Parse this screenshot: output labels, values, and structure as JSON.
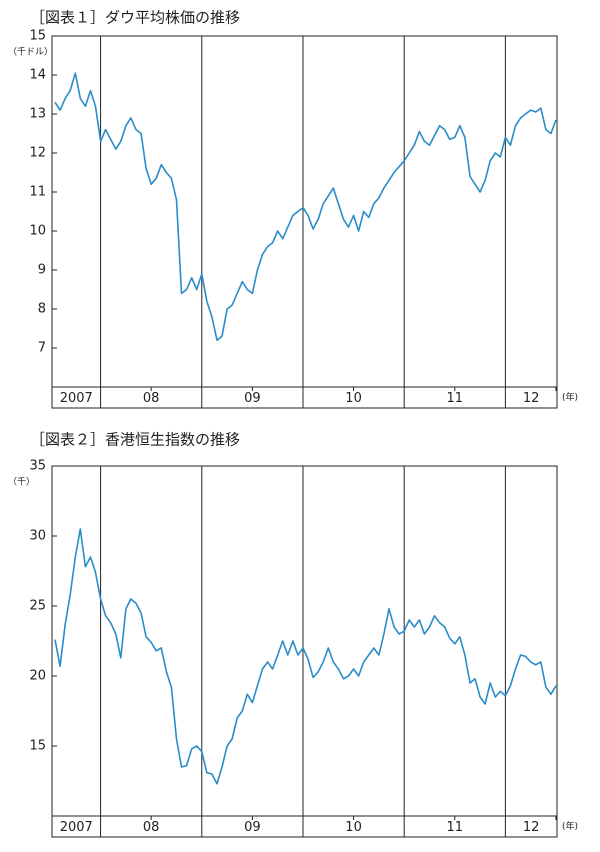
{
  "chart_data": [
    {
      "type": "line",
      "title": "［図表１］ダウ平均株価の推移",
      "y_unit": "（千ドル）",
      "x_unit": "(年)",
      "color": "#2a8cc8",
      "xlim": [
        2007.52,
        2012.51
      ],
      "xticks": [
        {
          "value": 2007,
          "label": "2007"
        },
        {
          "value": 2008,
          "label": "08"
        },
        {
          "value": 2009,
          "label": "09"
        },
        {
          "value": 2010,
          "label": "10"
        },
        {
          "value": 2011,
          "label": "11"
        },
        {
          "value": 2012,
          "label": "12"
        }
      ],
      "ylim": [
        6,
        15
      ],
      "yticks": [
        7,
        8,
        9,
        10,
        11,
        12,
        13,
        14,
        15
      ],
      "x": [
        2007.55,
        2007.6,
        2007.65,
        2007.7,
        2007.75,
        2007.8,
        2007.85,
        2007.9,
        2007.95,
        2008,
        2008.05,
        2008.1,
        2008.15,
        2008.2,
        2008.25,
        2008.3,
        2008.35,
        2008.4,
        2008.45,
        2008.5,
        2008.55,
        2008.6,
        2008.65,
        2008.7,
        2008.75,
        2008.8,
        2008.85,
        2008.9,
        2008.95,
        2009,
        2009.05,
        2009.1,
        2009.15,
        2009.2,
        2009.25,
        2009.3,
        2009.35,
        2009.4,
        2009.45,
        2009.5,
        2009.55,
        2009.6,
        2009.65,
        2009.7,
        2009.75,
        2009.8,
        2009.85,
        2009.9,
        2009.95,
        2010,
        2010.05,
        2010.1,
        2010.15,
        2010.2,
        2010.25,
        2010.3,
        2010.35,
        2010.4,
        2010.45,
        2010.5,
        2010.55,
        2010.6,
        2010.65,
        2010.7,
        2010.75,
        2010.8,
        2010.85,
        2010.9,
        2010.95,
        2011,
        2011.05,
        2011.1,
        2011.15,
        2011.2,
        2011.25,
        2011.3,
        2011.35,
        2011.4,
        2011.45,
        2011.5,
        2011.55,
        2011.6,
        2011.65,
        2011.7,
        2011.75,
        2011.8,
        2011.85,
        2011.9,
        2011.95,
        2012,
        2012.05,
        2012.1,
        2012.15,
        2012.2,
        2012.25,
        2012.3,
        2012.35,
        2012.4,
        2012.45,
        2012.5
      ],
      "values": [
        13.3,
        13.1,
        13.4,
        13.6,
        14.05,
        13.4,
        13.2,
        13.6,
        13.2,
        12.3,
        12.6,
        12.35,
        12.1,
        12.3,
        12.7,
        12.9,
        12.6,
        12.5,
        11.6,
        11.2,
        11.35,
        11.7,
        11.5,
        11.35,
        10.8,
        8.4,
        8.5,
        8.8,
        8.5,
        8.9,
        8.2,
        7.8,
        7.2,
        7.3,
        8.0,
        8.1,
        8.4,
        8.7,
        8.5,
        8.4,
        9.0,
        9.4,
        9.6,
        9.7,
        10.0,
        9.8,
        10.1,
        10.4,
        10.5,
        10.6,
        10.4,
        10.05,
        10.3,
        10.7,
        10.9,
        11.1,
        10.7,
        10.3,
        10.1,
        10.4,
        10.0,
        10.5,
        10.35,
        10.7,
        10.85,
        11.1,
        11.3,
        11.5,
        11.65,
        11.8,
        12.0,
        12.2,
        12.55,
        12.3,
        12.2,
        12.45,
        12.7,
        12.6,
        12.35,
        12.4,
        12.7,
        12.4,
        11.4,
        11.2,
        11.0,
        11.3,
        11.8,
        12.0,
        11.9,
        12.4,
        12.2,
        12.7,
        12.9,
        13.0,
        13.1,
        13.05,
        13.15,
        12.6,
        12.5,
        12.85
      ]
    },
    {
      "type": "line",
      "title": "［図表２］香港恒生指数の推移",
      "y_unit": "（千）",
      "x_unit": "(年)",
      "color": "#2a8cc8",
      "xlim": [
        2007.52,
        2012.51
      ],
      "xticks": [
        {
          "value": 2007,
          "label": "2007"
        },
        {
          "value": 2008,
          "label": "08"
        },
        {
          "value": 2009,
          "label": "09"
        },
        {
          "value": 2010,
          "label": "10"
        },
        {
          "value": 2011,
          "label": "11"
        },
        {
          "value": 2012,
          "label": "12"
        }
      ],
      "ylim": [
        10,
        35
      ],
      "yticks": [
        15,
        20,
        25,
        30,
        35
      ],
      "x": [
        2007.55,
        2007.6,
        2007.65,
        2007.7,
        2007.75,
        2007.8,
        2007.85,
        2007.9,
        2007.95,
        2008,
        2008.05,
        2008.1,
        2008.15,
        2008.2,
        2008.25,
        2008.3,
        2008.35,
        2008.4,
        2008.45,
        2008.5,
        2008.55,
        2008.6,
        2008.65,
        2008.7,
        2008.75,
        2008.8,
        2008.85,
        2008.9,
        2008.95,
        2009,
        2009.05,
        2009.1,
        2009.15,
        2009.2,
        2009.25,
        2009.3,
        2009.35,
        2009.4,
        2009.45,
        2009.5,
        2009.55,
        2009.6,
        2009.65,
        2009.7,
        2009.75,
        2009.8,
        2009.85,
        2009.9,
        2009.95,
        2010,
        2010.05,
        2010.1,
        2010.15,
        2010.2,
        2010.25,
        2010.3,
        2010.35,
        2010.4,
        2010.45,
        2010.5,
        2010.55,
        2010.6,
        2010.65,
        2010.7,
        2010.75,
        2010.8,
        2010.85,
        2010.9,
        2010.95,
        2011,
        2011.05,
        2011.1,
        2011.15,
        2011.2,
        2011.25,
        2011.3,
        2011.35,
        2011.4,
        2011.45,
        2011.5,
        2011.55,
        2011.6,
        2011.65,
        2011.7,
        2011.75,
        2011.8,
        2011.85,
        2011.9,
        2011.95,
        2012,
        2012.05,
        2012.1,
        2012.15,
        2012.2,
        2012.25,
        2012.3,
        2012.35,
        2012.4,
        2012.45,
        2012.5
      ],
      "values": [
        22.6,
        20.7,
        23.7,
        25.8,
        28.5,
        30.5,
        27.8,
        28.5,
        27.4,
        25.5,
        24.3,
        23.8,
        23.0,
        21.3,
        24.8,
        25.5,
        25.2,
        24.5,
        22.8,
        22.4,
        21.8,
        22.0,
        20.3,
        19.2,
        15.5,
        13.5,
        13.6,
        14.8,
        15.0,
        14.6,
        13.1,
        13.0,
        12.3,
        13.5,
        15.0,
        15.5,
        17.0,
        17.5,
        18.7,
        18.1,
        19.3,
        20.5,
        21.0,
        20.5,
        21.5,
        22.5,
        21.5,
        22.5,
        21.5,
        22.0,
        21.2,
        19.9,
        20.3,
        21.0,
        22.0,
        21.0,
        20.5,
        19.8,
        20.0,
        20.5,
        20.0,
        21.0,
        21.5,
        22.0,
        21.5,
        23.0,
        24.8,
        23.5,
        23.0,
        23.2,
        24.0,
        23.5,
        24.0,
        23.0,
        23.5,
        24.3,
        23.8,
        23.5,
        22.7,
        22.3,
        22.8,
        21.5,
        19.5,
        19.8,
        18.5,
        18.0,
        19.5,
        18.5,
        18.9,
        18.6,
        19.3,
        20.5,
        21.5,
        21.4,
        21.0,
        20.8,
        21.0,
        19.2,
        18.7,
        19.3
      ]
    }
  ]
}
